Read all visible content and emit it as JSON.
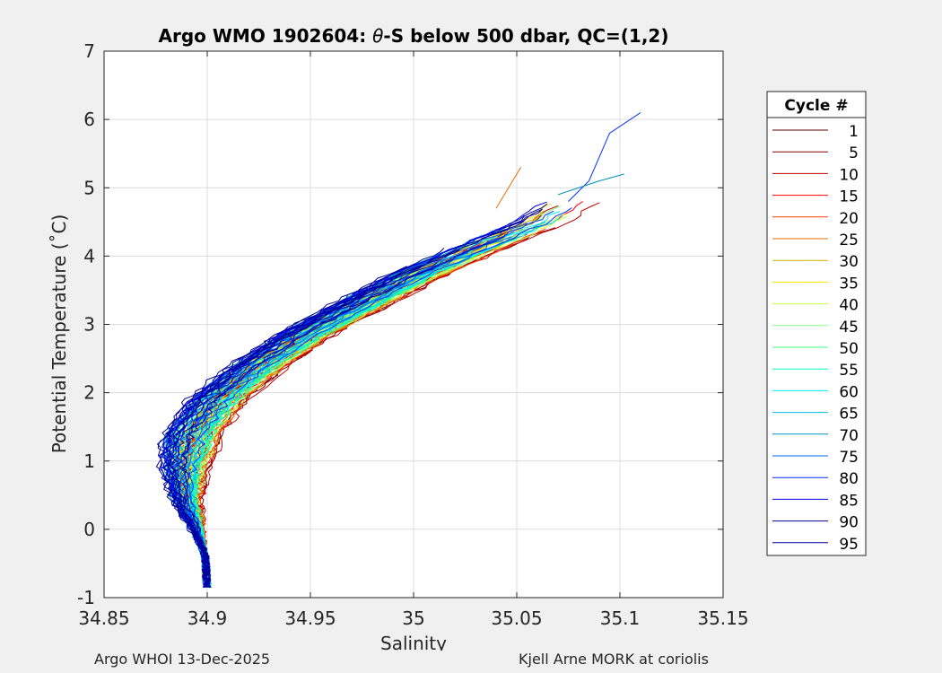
{
  "chart_data": {
    "type": "line",
    "title": "Argo WMO 1902604: θ-S below 500 dbar,  QC=(1,2)",
    "title_parts": {
      "prefix": "Argo WMO 1902604: ",
      "theta": "θ",
      "suffix": "-S below 500 dbar,  QC=(1,2)"
    },
    "xlabel": "Salinity",
    "ylabel": "Potential Temperature (˚C)",
    "xlim": [
      34.85,
      35.15
    ],
    "ylim": [
      -1,
      7
    ],
    "xticks": [
      34.85,
      34.9,
      34.95,
      35,
      35.05,
      35.1,
      35.15
    ],
    "xtick_labels": [
      "34.85",
      "34.9",
      "34.95",
      "35",
      "35.05",
      "35.1",
      "35.15"
    ],
    "yticks": [
      -1,
      0,
      1,
      2,
      3,
      4,
      5,
      6,
      7
    ],
    "ytick_labels": [
      "-1",
      "0",
      "1",
      "2",
      "3",
      "4",
      "5",
      "6",
      "7"
    ],
    "grid": true,
    "legend": {
      "title": "Cycle #",
      "placement": "right",
      "entries": [
        {
          "label": "1",
          "color": "#5a0000"
        },
        {
          "label": "5",
          "color": "#800000"
        },
        {
          "label": "10",
          "color": "#c00000"
        },
        {
          "label": "15",
          "color": "#ff0000"
        },
        {
          "label": "20",
          "color": "#ff4000"
        },
        {
          "label": "25",
          "color": "#e07000"
        },
        {
          "label": "30",
          "color": "#d0b000"
        },
        {
          "label": "35",
          "color": "#ffe000"
        },
        {
          "label": "40",
          "color": "#c0ff40"
        },
        {
          "label": "45",
          "color": "#80ff80"
        },
        {
          "label": "50",
          "color": "#40ff80"
        },
        {
          "label": "55",
          "color": "#00ffc0"
        },
        {
          "label": "60",
          "color": "#00f0ff"
        },
        {
          "label": "65",
          "color": "#00c0e0"
        },
        {
          "label": "70",
          "color": "#0090c0"
        },
        {
          "label": "75",
          "color": "#0060ff"
        },
        {
          "label": "80",
          "color": "#0030ff"
        },
        {
          "label": "85",
          "color": "#0000e0"
        },
        {
          "label": "90",
          "color": "#000090"
        },
        {
          "label": "95",
          "color": "#0000a0"
        }
      ]
    },
    "series_shape": {
      "description": "Theta-S profiles: each cycle traces a curve from deep cold water near S=34.9, T=-0.8 up to warmer saltier water",
      "base_curve": [
        [
          34.9,
          -0.85
        ],
        [
          34.899,
          -0.4
        ],
        [
          34.895,
          0.0
        ],
        [
          34.89,
          0.4
        ],
        [
          34.889,
          0.9
        ],
        [
          34.893,
          1.4
        ],
        [
          34.905,
          1.9
        ],
        [
          34.925,
          2.4
        ],
        [
          34.95,
          2.9
        ],
        [
          34.975,
          3.3
        ],
        [
          35.0,
          3.7
        ],
        [
          35.03,
          4.1
        ],
        [
          35.06,
          4.5
        ],
        [
          35.075,
          4.8
        ]
      ],
      "extended_tips": [
        {
          "cycle": "80",
          "points": [
            [
              35.075,
              4.8
            ],
            [
              35.085,
              5.1
            ],
            [
              35.095,
              5.8
            ],
            [
              35.11,
              6.1
            ]
          ]
        },
        {
          "cycle": "25",
          "points": [
            [
              35.04,
              4.7
            ],
            [
              35.05,
              5.2
            ],
            [
              35.052,
              5.3
            ]
          ]
        },
        {
          "cycle": "70",
          "points": [
            [
              35.07,
              4.9
            ],
            [
              35.09,
              5.1
            ],
            [
              35.102,
              5.2
            ]
          ]
        }
      ]
    }
  },
  "footer": {
    "left": "Argo WHOI 13-Dec-2025",
    "right": "Kjell Arne MORK at coriolis"
  }
}
